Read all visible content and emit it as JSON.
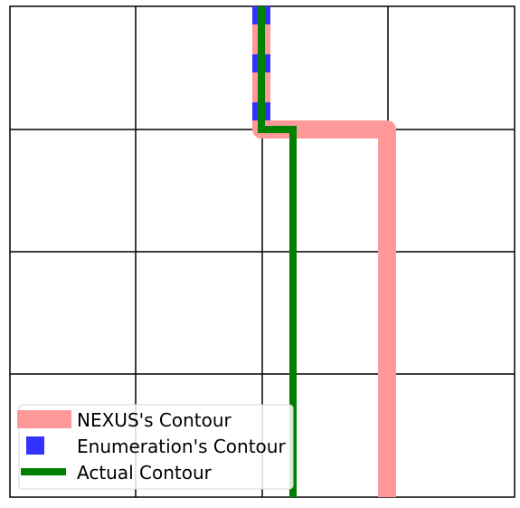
{
  "colors": {
    "grid": "#000000",
    "nexus": "#ff9999",
    "enumeration": "#3333ff",
    "actual": "#008000",
    "legend_border": "#d8d8d8"
  },
  "legend": {
    "items": [
      {
        "label": "NEXUS's Contour",
        "color": "#ff9999",
        "style": "thick"
      },
      {
        "label": "Enumeration's Contour",
        "color": "#3333ff",
        "style": "square"
      },
      {
        "label": "Actual Contour",
        "color": "#008000",
        "style": "line"
      }
    ]
  }
}
